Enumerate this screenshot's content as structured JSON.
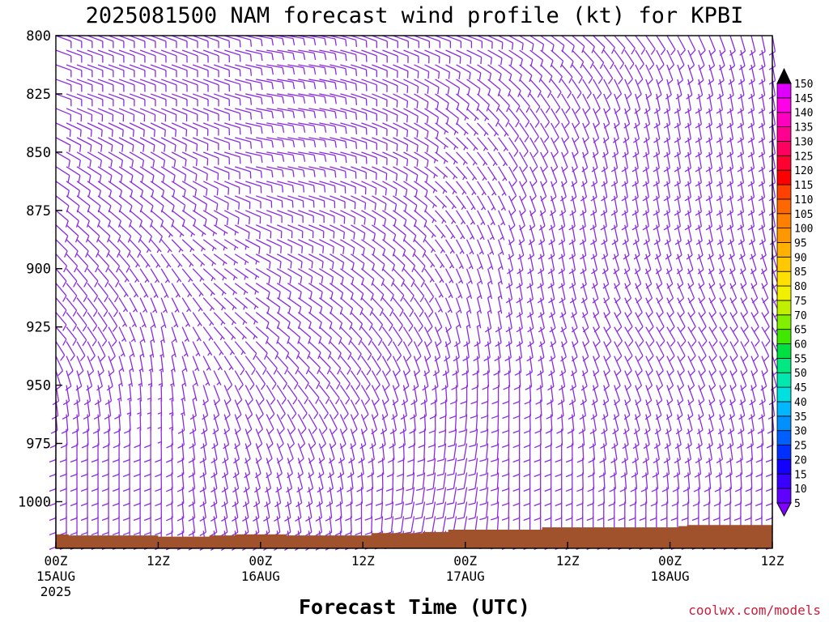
{
  "chart_data": {
    "type": "wind_barb_time_height",
    "title": "2025081500 NAM forecast wind profile (kt) for KPBI",
    "xlabel": "Forecast Time (UTC)",
    "credit": "coolwx.com/models",
    "y_axis": {
      "unit": "hPa",
      "range": [
        800,
        1020
      ],
      "ticks": [
        800,
        825,
        850,
        875,
        900,
        925,
        950,
        975,
        1000
      ],
      "labels": [
        "800",
        "825",
        "850",
        "875",
        "900",
        "925",
        "950",
        "975",
        "1000"
      ]
    },
    "x_axis": {
      "range_hours": [
        0,
        84
      ],
      "ticks": [
        {
          "hour": 0,
          "label": "00Z",
          "date": "15AUG",
          "year": "2025"
        },
        {
          "hour": 12,
          "label": "12Z",
          "date": "",
          "year": ""
        },
        {
          "hour": 24,
          "label": "00Z",
          "date": "16AUG",
          "year": ""
        },
        {
          "hour": 36,
          "label": "12Z",
          "date": "",
          "year": ""
        },
        {
          "hour": 48,
          "label": "00Z",
          "date": "17AUG",
          "year": ""
        },
        {
          "hour": 60,
          "label": "12Z",
          "date": "",
          "year": ""
        },
        {
          "hour": 72,
          "label": "00Z",
          "date": "18AUG",
          "year": ""
        },
        {
          "hour": 84,
          "label": "12Z",
          "date": "",
          "year": ""
        }
      ]
    },
    "colorbar": {
      "levels": [
        5,
        10,
        15,
        20,
        25,
        30,
        35,
        40,
        45,
        50,
        55,
        60,
        65,
        70,
        75,
        80,
        85,
        90,
        95,
        100,
        105,
        110,
        115,
        120,
        125,
        130,
        135,
        140,
        145,
        150
      ],
      "colors": [
        "#8000ff",
        "#6000ff",
        "#3a00ff",
        "#1400ff",
        "#0030ff",
        "#0060ff",
        "#0090ff",
        "#00b8ff",
        "#00e0e0",
        "#00e8b0",
        "#00e880",
        "#00e040",
        "#40e800",
        "#80f000",
        "#c0f000",
        "#f0f000",
        "#ffe000",
        "#ffc800",
        "#ffb000",
        "#ff9800",
        "#ff8000",
        "#ff6800",
        "#ff4000",
        "#ff0000",
        "#ff0030",
        "#ff0060",
        "#ff0090",
        "#ff00c0",
        "#ff00e8",
        "#e000ff"
      ]
    },
    "barb_color": "#8a2be2",
    "terrain": {
      "color": "#a0522d",
      "hours": [
        0,
        1.5,
        5,
        12,
        15,
        18,
        21,
        27,
        37,
        43,
        46,
        55,
        57,
        59,
        68,
        73,
        74,
        77,
        79,
        84
      ],
      "pressure": [
        1014,
        1014.5,
        1014.5,
        1015,
        1015,
        1014.5,
        1014,
        1014.5,
        1013.5,
        1013,
        1012,
        1012,
        1011,
        1011,
        1011,
        1010.5,
        1010,
        1010,
        1010,
        1011
      ]
    },
    "wind_field": {
      "description": "Barb field read visually: speed (kt) and meteorological direction (deg) keyed by forecast hour and pressure",
      "levels_hPa": [
        800,
        825,
        850,
        875,
        900,
        925,
        950,
        975,
        1000
      ],
      "hours": [
        0,
        6,
        12,
        18,
        24,
        30,
        36,
        42,
        48,
        54,
        60,
        66,
        72,
        78,
        84
      ],
      "speed": [
        [
          10,
          10,
          10,
          10,
          8,
          8,
          8,
          10,
          10,
          10,
          10,
          10,
          8,
          8,
          8
        ],
        [
          10,
          10,
          10,
          10,
          8,
          8,
          8,
          8,
          8,
          8,
          8,
          8,
          8,
          8,
          8
        ],
        [
          10,
          10,
          8,
          8,
          8,
          8,
          8,
          8,
          5,
          8,
          8,
          8,
          8,
          8,
          10
        ],
        [
          10,
          10,
          8,
          8,
          8,
          8,
          8,
          8,
          5,
          8,
          8,
          8,
          8,
          10,
          10
        ],
        [
          8,
          8,
          5,
          5,
          8,
          8,
          8,
          8,
          5,
          8,
          8,
          8,
          8,
          8,
          8
        ],
        [
          8,
          8,
          5,
          5,
          8,
          8,
          8,
          8,
          8,
          8,
          8,
          8,
          8,
          8,
          8
        ],
        [
          8,
          8,
          5,
          8,
          10,
          10,
          8,
          8,
          8,
          10,
          10,
          10,
          8,
          8,
          8
        ],
        [
          10,
          10,
          8,
          10,
          10,
          10,
          8,
          8,
          8,
          10,
          10,
          10,
          8,
          8,
          8
        ],
        [
          10,
          10,
          8,
          10,
          10,
          10,
          8,
          8,
          8,
          10,
          10,
          10,
          10,
          8,
          8
        ]
      ],
      "direction": [
        [
          110,
          110,
          110,
          110,
          100,
          100,
          110,
          110,
          110,
          120,
          130,
          140,
          150,
          160,
          170
        ],
        [
          110,
          110,
          110,
          110,
          100,
          100,
          110,
          120,
          130,
          140,
          150,
          160,
          170,
          170,
          170
        ],
        [
          120,
          120,
          120,
          110,
          100,
          100,
          110,
          120,
          140,
          150,
          160,
          170,
          170,
          170,
          170
        ],
        [
          130,
          130,
          130,
          120,
          110,
          110,
          120,
          130,
          150,
          160,
          170,
          170,
          170,
          170,
          170
        ],
        [
          140,
          140,
          150,
          130,
          120,
          120,
          130,
          140,
          160,
          170,
          170,
          160,
          160,
          160,
          160
        ],
        [
          140,
          150,
          170,
          140,
          130,
          130,
          140,
          150,
          170,
          170,
          160,
          150,
          150,
          150,
          150
        ],
        [
          170,
          170,
          180,
          160,
          150,
          140,
          150,
          170,
          180,
          180,
          170,
          160,
          160,
          160,
          170
        ],
        [
          180,
          180,
          180,
          170,
          160,
          160,
          170,
          180,
          190,
          180,
          180,
          170,
          170,
          170,
          180
        ],
        [
          180,
          180,
          180,
          170,
          170,
          170,
          180,
          190,
          190,
          180,
          180,
          180,
          180,
          180,
          180
        ]
      ]
    }
  }
}
